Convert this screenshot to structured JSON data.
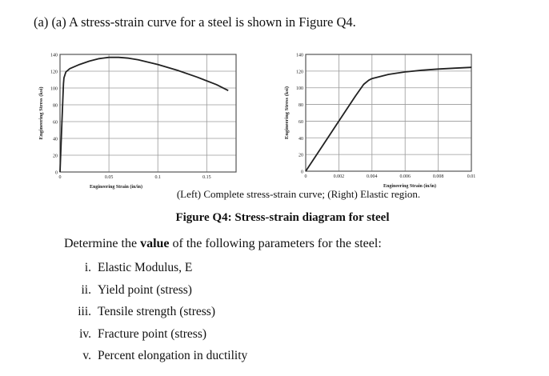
{
  "question": {
    "intro": "(a) (a) A stress-strain curve for a steel is shown in Figure Q4.",
    "caption_sub": "(Left) Complete stress-strain curve; (Right) Elastic region.",
    "caption_title": "Figure Q4: Stress-strain diagram for steel",
    "prompt_before": "Determine the ",
    "prompt_bold": "value",
    "prompt_after": " of the following parameters for the steel:",
    "items": [
      {
        "num": "i.",
        "text": "Elastic Modulus, E"
      },
      {
        "num": "ii.",
        "text": "Yield point (stress)"
      },
      {
        "num": "iii.",
        "text": "Tensile strength (stress)"
      },
      {
        "num": "iv.",
        "text": "Fracture point (stress)"
      },
      {
        "num": "v.",
        "text": "Percent elongation in ductility"
      }
    ]
  },
  "chart_data": [
    {
      "type": "line",
      "title": "Complete stress-strain curve",
      "xlabel": "Engineering Strain (in/in)",
      "ylabel": "Engineering Stress (ksi)",
      "xlim": [
        0,
        0.18
      ],
      "ylim": [
        0,
        140
      ],
      "xticks": [
        "0",
        "0.05",
        "0.1",
        "0.15"
      ],
      "xtick_values": [
        0,
        0.05,
        0.1,
        0.15
      ],
      "yticks": [
        0,
        20,
        40,
        60,
        80,
        100,
        120,
        140
      ],
      "grid": true,
      "series": [
        {
          "name": "steel",
          "x": [
            0,
            0.002,
            0.0035,
            0.004,
            0.006,
            0.01,
            0.02,
            0.03,
            0.04,
            0.05,
            0.06,
            0.07,
            0.08,
            0.1,
            0.12,
            0.14,
            0.16,
            0.172
          ],
          "y": [
            0,
            60,
            105,
            112,
            119,
            123,
            128,
            132,
            135,
            136.5,
            136.5,
            135.5,
            133.5,
            128,
            121,
            113,
            104,
            97
          ]
        }
      ]
    },
    {
      "type": "line",
      "title": "Elastic region",
      "xlabel": "Engineering Strain (in/in)",
      "ylabel": "Engineering Stress (ksi)",
      "xlim": [
        0,
        0.01
      ],
      "ylim": [
        0,
        140
      ],
      "xticks": [
        "0",
        "0.002",
        "0.004",
        "0.006",
        "0.008",
        "0.01"
      ],
      "xtick_values": [
        0,
        0.002,
        0.004,
        0.006,
        0.008,
        0.01
      ],
      "yticks": [
        0,
        20,
        40,
        60,
        80,
        100,
        120,
        140
      ],
      "grid": true,
      "series": [
        {
          "name": "steel",
          "x": [
            0,
            0.001,
            0.002,
            0.003,
            0.0035,
            0.0038,
            0.004,
            0.005,
            0.006,
            0.007,
            0.008,
            0.009,
            0.01
          ],
          "y": [
            0,
            30,
            60,
            90,
            104,
            109,
            111,
            116,
            119,
            121,
            122.5,
            123.5,
            124.5
          ]
        }
      ]
    }
  ]
}
